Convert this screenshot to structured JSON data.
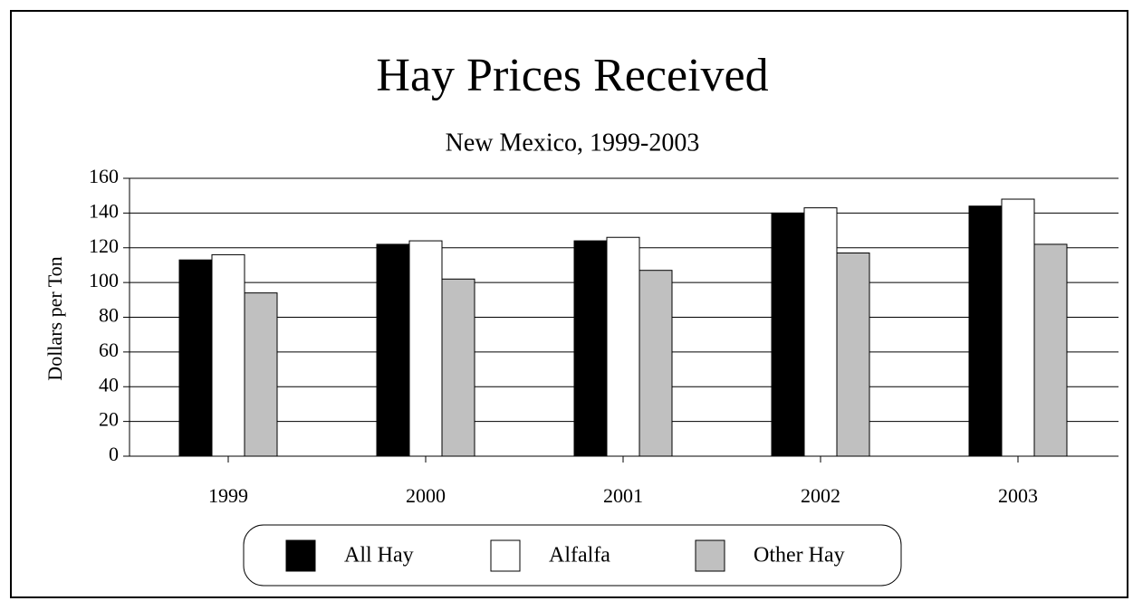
{
  "chart_data": {
    "type": "bar",
    "title": "Hay Prices Received",
    "subtitle": "New Mexico, 1999-2003",
    "y_label": "Dollars per Ton",
    "categories": [
      "1999",
      "2000",
      "2001",
      "2002",
      "2003"
    ],
    "series": [
      {
        "name": "All Hay",
        "color": "#000000",
        "values": [
          113,
          122,
          124,
          140,
          144
        ]
      },
      {
        "name": "Alfalfa",
        "color": "#ffffff",
        "values": [
          116,
          124,
          126,
          143,
          148
        ]
      },
      {
        "name": "Other Hay",
        "color": "#c0c0c0",
        "values": [
          94,
          102,
          107,
          117,
          122
        ]
      }
    ],
    "ylim": [
      0,
      160
    ],
    "yticks": [
      0,
      20,
      40,
      60,
      80,
      100,
      120,
      140,
      160
    ],
    "grid": true
  }
}
